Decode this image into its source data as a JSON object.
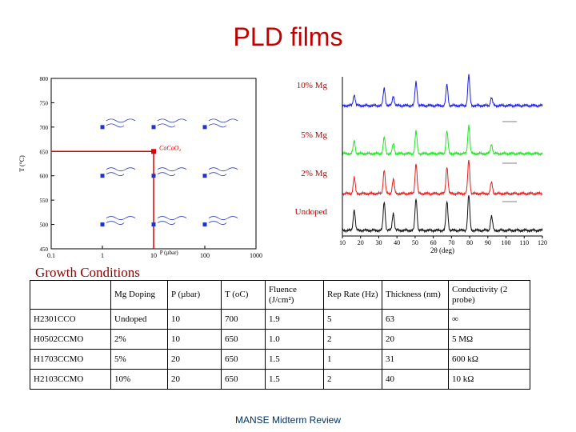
{
  "title": "PLD films",
  "footer": "MANSE Midterm Review",
  "growth_label": "Growth Conditions",
  "chart_data": [
    {
      "type": "scatter",
      "xscale": "log",
      "xlim": [
        0.1,
        1000
      ],
      "ylim": [
        450,
        800
      ],
      "xticks": [
        "0.1",
        "1",
        "10",
        "100",
        "1000"
      ],
      "yticks": [
        "450",
        "500",
        "550",
        "600",
        "650",
        "700",
        "750",
        "800"
      ],
      "xlabel": "P (µbar)",
      "ylabel": "T (°C)",
      "points": [
        {
          "x": 1,
          "y": 700
        },
        {
          "x": 10,
          "y": 700
        },
        {
          "x": 100,
          "y": 700
        },
        {
          "x": 1,
          "y": 600
        },
        {
          "x": 10,
          "y": 600
        },
        {
          "x": 100,
          "y": 600
        },
        {
          "x": 1,
          "y": 500
        },
        {
          "x": 10,
          "y": 500
        },
        {
          "x": 100,
          "y": 500
        }
      ],
      "highlight_point": {
        "x": 10,
        "y": 650,
        "label": "CaCoO₂"
      },
      "reference_lines": {
        "x": 10,
        "y": 650
      }
    },
    {
      "type": "line",
      "xlim": [
        10,
        120
      ],
      "xticks": [
        "10",
        "20",
        "30",
        "40",
        "50",
        "60",
        "70",
        "80",
        "90",
        "100",
        "110",
        "120"
      ],
      "xlabel": "2θ (deg)",
      "peaks": [
        16.5,
        33,
        38,
        50.5,
        67.5,
        79.5,
        92
      ],
      "series": [
        {
          "name": "10% Mg",
          "color": "#1e1ee6"
        },
        {
          "name": "5% Mg",
          "color": "#1ee61e"
        },
        {
          "name": "2% Mg",
          "color": "#e61e1e"
        },
        {
          "name": "Undoped",
          "color": "#111111"
        }
      ]
    }
  ],
  "table": {
    "headers": [
      "",
      "Mg Doping",
      "P (µbar)",
      "T (oC)",
      "Fluence (J/cm²)",
      "Rep Rate (Hz)",
      "Thickness (nm)",
      "Conductivity (2 probe)"
    ],
    "rows": [
      [
        "H2301CCO",
        "Undoped",
        "10",
        "700",
        "1.9",
        "5",
        "63",
        "∞"
      ],
      [
        "H0502CCMO",
        "2%",
        "10",
        "650",
        "1.0",
        "2",
        "20",
        "5 MΩ"
      ],
      [
        "H1703CCMO",
        "5%",
        "20",
        "650",
        "1.5",
        "1",
        "31",
        "600 kΩ"
      ],
      [
        "H2103CCMO",
        "10%",
        "20",
        "650",
        "1.5",
        "2",
        "40",
        "10 kΩ"
      ]
    ]
  }
}
